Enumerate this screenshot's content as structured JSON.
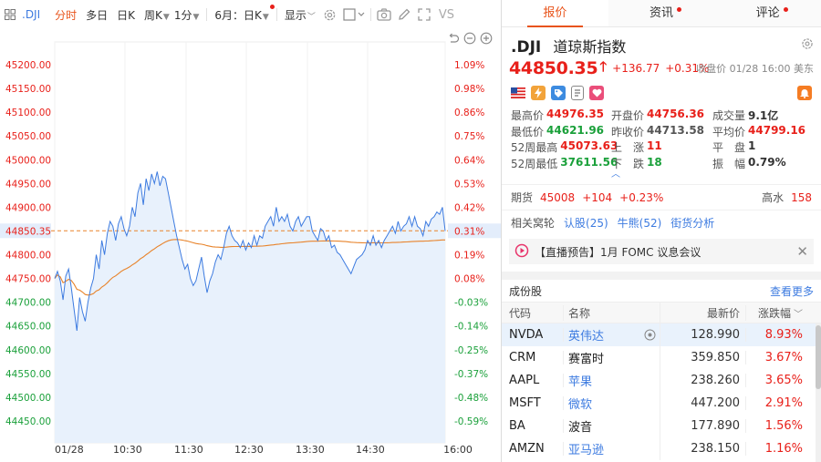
{
  "toolbar": {
    "symbol": ".DJI",
    "items": [
      {
        "label": "分时",
        "active": true
      },
      {
        "label": "多日"
      },
      {
        "label": "日K"
      },
      {
        "label": "周K"
      },
      {
        "label": "1分"
      },
      {
        "label": "6月：日K"
      },
      {
        "label": "显示"
      }
    ],
    "vs_label": "VS"
  },
  "chart": {
    "price_labels": [
      "45200.00",
      "45150.00",
      "45100.00",
      "45050.00",
      "45000.00",
      "44950.00",
      "44900.00",
      "44850.35",
      "44800.00",
      "44750.00",
      "44700.00",
      "44650.00",
      "44600.00",
      "44550.00",
      "44500.00",
      "44450.00"
    ],
    "pct_labels": [
      "1.09%",
      "0.98%",
      "0.86%",
      "0.75%",
      "0.64%",
      "0.53%",
      "0.42%",
      "0.31%",
      "0.19%",
      "0.08%",
      "-0.03%",
      "-0.14%",
      "-0.25%",
      "-0.37%",
      "-0.48%",
      "-0.59%"
    ],
    "time_labels": [
      "01/28",
      "10:30",
      "11:30",
      "12:30",
      "13:30",
      "14:30",
      "16:00"
    ],
    "prev_close": 44713.58,
    "last": 44850.35,
    "colors": {
      "up": "#e8201a",
      "down": "#1aa03a",
      "line": "#3d7be0",
      "avg": "#e8832a",
      "fill": "#e8f1fc"
    },
    "price_series": [
      44750,
      44765,
      44745,
      44705,
      44755,
      44770,
      44730,
      44685,
      44640,
      44710,
      44680,
      44660,
      44700,
      44730,
      44750,
      44800,
      44770,
      44830,
      44800,
      44845,
      44870,
      44860,
      44830,
      44865,
      44880,
      44855,
      44840,
      44860,
      44900,
      44880,
      44930,
      44950,
      44905,
      44960,
      44935,
      44970,
      44950,
      44975,
      44945,
      44965,
      44960,
      44930,
      44900,
      44870,
      44840,
      44815,
      44790,
      44770,
      44780,
      44750,
      44735,
      44745,
      44770,
      44795,
      44755,
      44720,
      44745,
      44760,
      44785,
      44800,
      44790,
      44815,
      44845,
      44860,
      44840,
      44830,
      44825,
      44815,
      44830,
      44810,
      44825,
      44815,
      44840,
      44820,
      44840,
      44835,
      44860,
      44870,
      44880,
      44860,
      44900,
      44870,
      44880,
      44870,
      44885,
      44860,
      44850,
      44870,
      44880,
      44860,
      44870,
      44880,
      44880,
      44850,
      44840,
      44830,
      44855,
      44850,
      44830,
      44840,
      44815,
      44820,
      44805,
      44800,
      44790,
      44780,
      44770,
      44760,
      44775,
      44790,
      44795,
      44800,
      44810,
      44830,
      44820,
      44840,
      44820,
      44830,
      44815,
      44830,
      44840,
      44850,
      44860,
      44845,
      44870,
      44850,
      44860,
      44865,
      44880,
      44860,
      44880,
      44860,
      44855,
      44840,
      44870,
      44860,
      44875,
      44880,
      44890,
      44885,
      44900,
      44850
    ]
  },
  "tabs": [
    {
      "label": "报价",
      "active": true,
      "dot": false
    },
    {
      "label": "资讯",
      "active": false,
      "dot": true
    },
    {
      "label": "评论",
      "active": false,
      "dot": true
    }
  ],
  "quote": {
    "symbol": ".DJI",
    "name": "道琼斯指数",
    "price": "44850.35",
    "change": "+136.77",
    "change_pct": "+0.31%",
    "close_info": "收盘价 01/28 16:00 美东"
  },
  "stats": {
    "high_label": "最高价",
    "high": "44976.35",
    "open_label": "开盘价",
    "open": "44756.36",
    "vol_label": "成交量",
    "vol": "9.1亿",
    "low_label": "最低价",
    "low": "44621.96",
    "prev_label": "昨收价",
    "prev": "44713.58",
    "avg_label": "平均价",
    "avg": "44799.16",
    "h52_label": "52周最高",
    "h52": "45073.63",
    "up_label": "上　涨",
    "up": "11",
    "flat_label": "平　盘",
    "flat": "1",
    "l52_label": "52周最低",
    "l52": "37611.56",
    "down_label": "下　跌",
    "down": "18",
    "amp_label": "振　幅",
    "amp": "0.79%"
  },
  "futures": {
    "label": "期货",
    "price": "45008",
    "chg": "+104",
    "pct": "+0.23%",
    "premium_label": "高水",
    "premium": "158"
  },
  "related": {
    "label": "相关窝轮",
    "bull_label": "认股(25)",
    "bear_label": "牛熊(52)",
    "analysis_label": "街货分析"
  },
  "live": {
    "text": "【直播预告】1月 FOMC 议息会议"
  },
  "components": {
    "title": "成份股",
    "more": "查看更多",
    "headers": {
      "code": "代码",
      "name": "名称",
      "price": "最新价",
      "pct": "涨跌幅"
    },
    "rows": [
      {
        "code": "NVDA",
        "name": "英伟达",
        "price": "128.990",
        "pct": "8.93%"
      },
      {
        "code": "CRM",
        "name": "赛富时",
        "price": "359.850",
        "pct": "3.67%"
      },
      {
        "code": "AAPL",
        "name": "苹果",
        "price": "238.260",
        "pct": "3.65%"
      },
      {
        "code": "MSFT",
        "name": "微软",
        "price": "447.200",
        "pct": "2.91%"
      },
      {
        "code": "BA",
        "name": "波音",
        "price": "177.890",
        "pct": "1.56%"
      },
      {
        "code": "AMZN",
        "name": "亚马逊",
        "price": "238.150",
        "pct": "1.16%"
      }
    ]
  }
}
